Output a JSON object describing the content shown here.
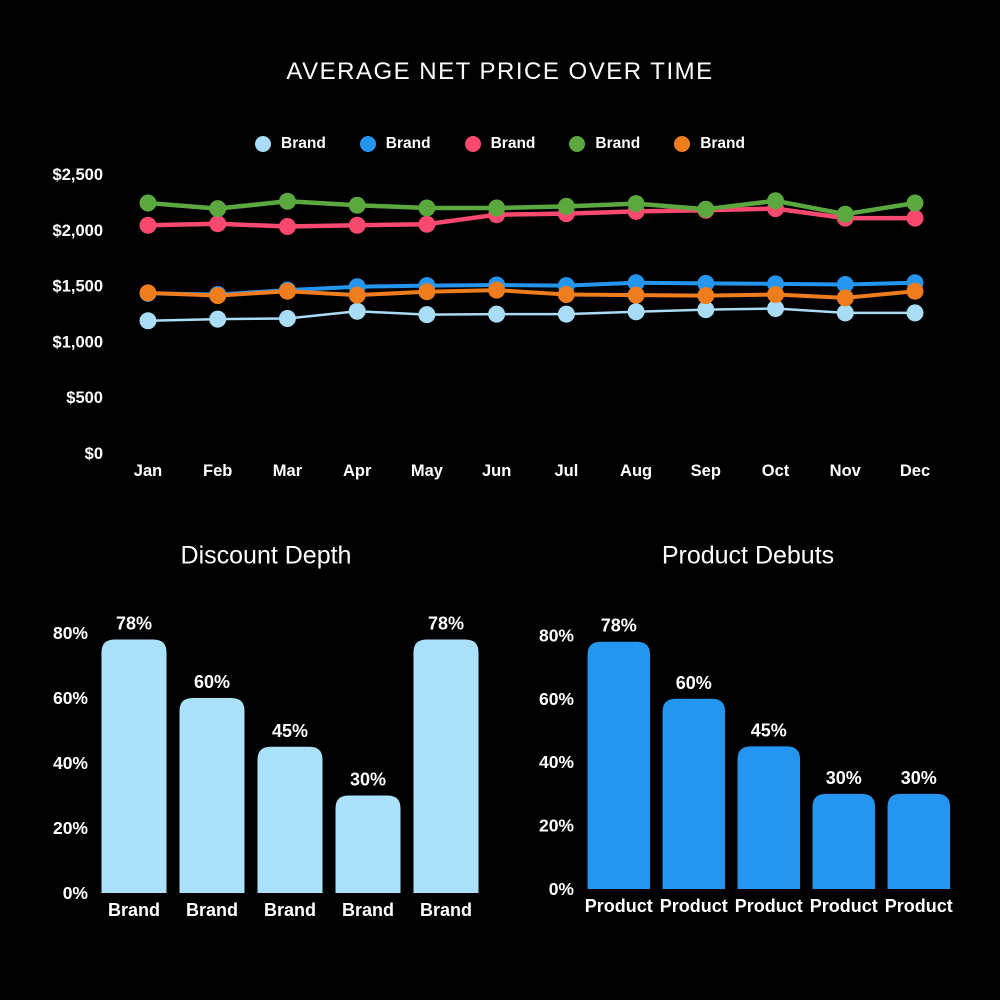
{
  "page": {
    "background": "#000000",
    "text_color": "#ffffff"
  },
  "chart_data": [
    {
      "type": "line",
      "title": "AVERAGE NET PRICE OVER TIME",
      "x": [
        "Jan",
        "Feb",
        "Mar",
        "Apr",
        "May",
        "Jun",
        "Jul",
        "Aug",
        "Sep",
        "Oct",
        "Nov",
        "Dec"
      ],
      "y_ticks": [
        "$0",
        "$500",
        "$1,000",
        "$1,500",
        "$2,000",
        "$2,500"
      ],
      "y_tick_values": [
        0,
        500,
        1000,
        1500,
        2000,
        2500
      ],
      "ylim": [
        0,
        2500
      ],
      "grid": false,
      "legend_position": "top",
      "series": [
        {
          "name": "Brand",
          "color": "#A9DCF7",
          "values": [
            1185,
            1200,
            1205,
            1270,
            1240,
            1245,
            1245,
            1265,
            1285,
            1295,
            1255,
            1255
          ]
        },
        {
          "name": "Brand",
          "color": "#2496F0",
          "values": [
            1430,
            1420,
            1460,
            1490,
            1500,
            1505,
            1500,
            1525,
            1520,
            1515,
            1510,
            1525
          ]
        },
        {
          "name": "Brand",
          "color": "#F9496F",
          "values": [
            2040,
            2055,
            2030,
            2040,
            2050,
            2135,
            2145,
            2165,
            2175,
            2190,
            2105,
            2105
          ]
        },
        {
          "name": "Brand",
          "color": "#5BA83E",
          "values": [
            2240,
            2190,
            2255,
            2220,
            2195,
            2195,
            2210,
            2235,
            2185,
            2260,
            2140,
            2240
          ]
        },
        {
          "name": "Brand",
          "color": "#EF7D1D",
          "values": [
            1435,
            1410,
            1450,
            1415,
            1445,
            1460,
            1420,
            1415,
            1410,
            1420,
            1390,
            1450
          ]
        }
      ]
    },
    {
      "type": "bar",
      "title": "Discount Depth",
      "categories": [
        "Brand",
        "Brand",
        "Brand",
        "Brand",
        "Brand"
      ],
      "values": [
        78,
        60,
        45,
        30,
        78
      ],
      "value_labels": [
        "78%",
        "60%",
        "45%",
        "30%",
        "78%"
      ],
      "y_ticks": [
        "0%",
        "20%",
        "40%",
        "60%",
        "80%"
      ],
      "y_tick_values": [
        0,
        20,
        40,
        60,
        80
      ],
      "ylim": [
        0,
        80
      ],
      "bar_color": "#ABE1FA",
      "grid": false
    },
    {
      "type": "bar",
      "title": "Product Debuts",
      "categories": [
        "Product",
        "Product",
        "Product",
        "Product",
        "Product"
      ],
      "values": [
        78,
        60,
        45,
        30,
        30
      ],
      "value_labels": [
        "78%",
        "60%",
        "45%",
        "30%",
        "30%"
      ],
      "y_ticks": [
        "0%",
        "20%",
        "40%",
        "60%",
        "80%"
      ],
      "y_tick_values": [
        0,
        20,
        40,
        60,
        80
      ],
      "ylim": [
        0,
        80
      ],
      "bar_color": "#2496F0",
      "grid": false
    }
  ]
}
